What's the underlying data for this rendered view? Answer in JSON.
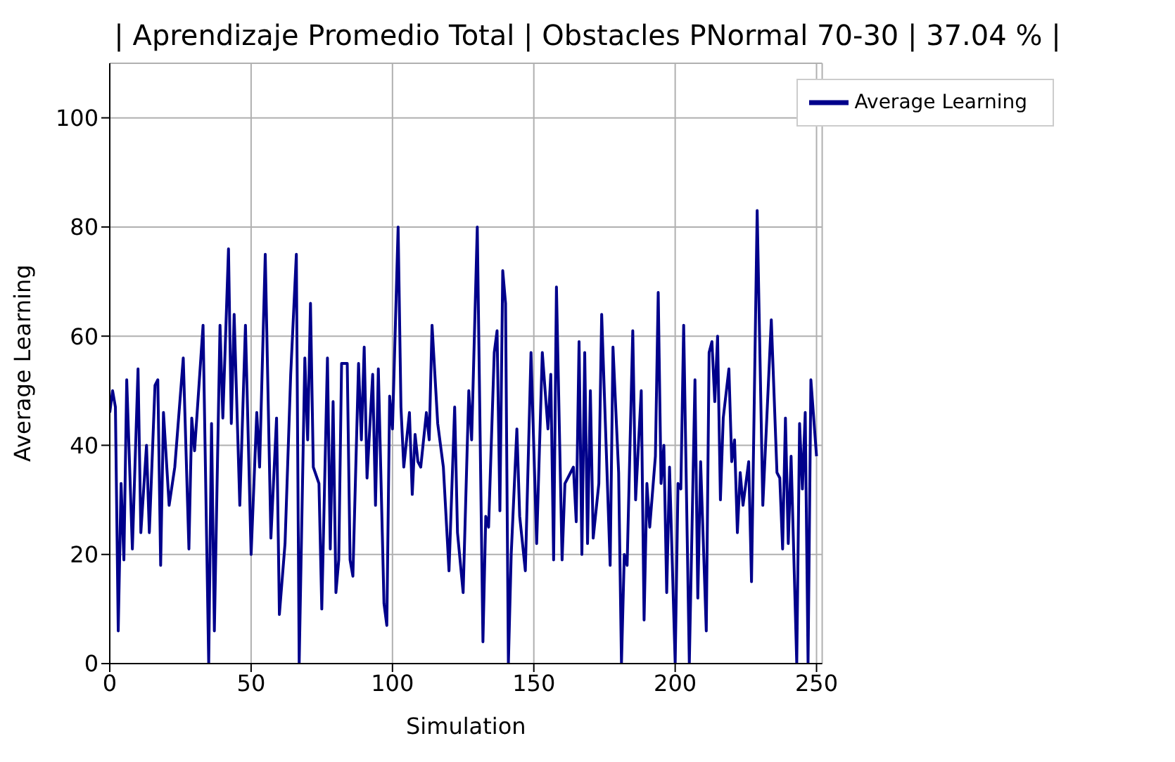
{
  "chart_data": {
    "type": "line",
    "title": "| Aprendizaje Promedio Total | Obstacles PNormal 70-30 | 37.04 % |",
    "xlabel": "Simulation",
    "ylabel": "Average Learning",
    "x": [
      0,
      1,
      2,
      3,
      4,
      5,
      6,
      8,
      10,
      11,
      13,
      14,
      16,
      17,
      18,
      19,
      21,
      23,
      26,
      28,
      29,
      30,
      33,
      35,
      36,
      37,
      39,
      40,
      42,
      43,
      44,
      46,
      48,
      50,
      52,
      53,
      55,
      57,
      59,
      60,
      62,
      64,
      66,
      67,
      69,
      70,
      71,
      72,
      74,
      75,
      77,
      78,
      79,
      80,
      81,
      82,
      84,
      85,
      86,
      88,
      89,
      90,
      91,
      93,
      94,
      95,
      97,
      98,
      99,
      100,
      102,
      103,
      104,
      106,
      107,
      108,
      109,
      110,
      112,
      113,
      114,
      116,
      118,
      120,
      122,
      123,
      125,
      127,
      128,
      130,
      132,
      133,
      134,
      136,
      137,
      138,
      139,
      140,
      141,
      142,
      144,
      145,
      147,
      149,
      151,
      153,
      155,
      156,
      157,
      158,
      160,
      161,
      164,
      165,
      166,
      167,
      168,
      169,
      170,
      171,
      173,
      174,
      177,
      178,
      180,
      181,
      182,
      183,
      185,
      186,
      188,
      189,
      190,
      191,
      193,
      194,
      195,
      196,
      197,
      198,
      200,
      201,
      202,
      203,
      205,
      207,
      208,
      209,
      211,
      212,
      213,
      214,
      215,
      216,
      217,
      219,
      220,
      221,
      222,
      223,
      224,
      226,
      227,
      229,
      231,
      234,
      236,
      237,
      238,
      239,
      240,
      241,
      243,
      244,
      245,
      246,
      247,
      248,
      250
    ],
    "series": [
      {
        "name": "Average Learning",
        "color": "#00008b",
        "values": [
          46,
          50,
          47,
          6,
          33,
          19,
          52,
          21,
          54,
          24,
          40,
          24,
          51,
          52,
          18,
          46,
          29,
          36,
          56,
          21,
          45,
          39,
          62,
          0,
          44,
          6,
          62,
          45,
          76,
          44,
          64,
          29,
          62,
          20,
          46,
          36,
          75,
          23,
          45,
          9,
          22,
          53,
          75,
          0,
          56,
          41,
          66,
          36,
          33,
          10,
          56,
          21,
          48,
          13,
          19,
          55,
          55,
          19,
          16,
          55,
          41,
          58,
          34,
          53,
          29,
          54,
          11,
          7,
          49,
          43,
          80,
          47,
          36,
          46,
          31,
          42,
          37,
          36,
          46,
          41,
          62,
          44,
          36,
          17,
          47,
          24,
          13,
          50,
          41,
          80,
          4,
          27,
          25,
          57,
          61,
          28,
          72,
          66,
          0,
          20,
          43,
          27,
          17,
          57,
          22,
          57,
          43,
          53,
          19,
          69,
          19,
          33,
          36,
          26,
          59,
          20,
          57,
          22,
          50,
          23,
          33,
          64,
          18,
          58,
          35,
          0,
          20,
          18,
          61,
          30,
          50,
          8,
          33,
          25,
          38,
          68,
          33,
          40,
          13,
          36,
          0,
          33,
          32,
          62,
          0,
          52,
          12,
          37,
          6,
          57,
          59,
          48,
          60,
          30,
          45,
          54,
          37,
          41,
          24,
          35,
          29,
          37,
          15,
          83,
          29,
          63,
          35,
          34,
          21,
          45,
          22,
          38,
          0,
          44,
          32,
          46,
          0,
          52,
          38
        ]
      }
    ],
    "xlim": [
      0,
      252
    ],
    "xticks": [
      0,
      50,
      100,
      150,
      200,
      250
    ],
    "ylim": [
      0,
      110
    ],
    "yticks": [
      0,
      20,
      40,
      60,
      80,
      100
    ],
    "grid": true,
    "legend": "top right"
  }
}
